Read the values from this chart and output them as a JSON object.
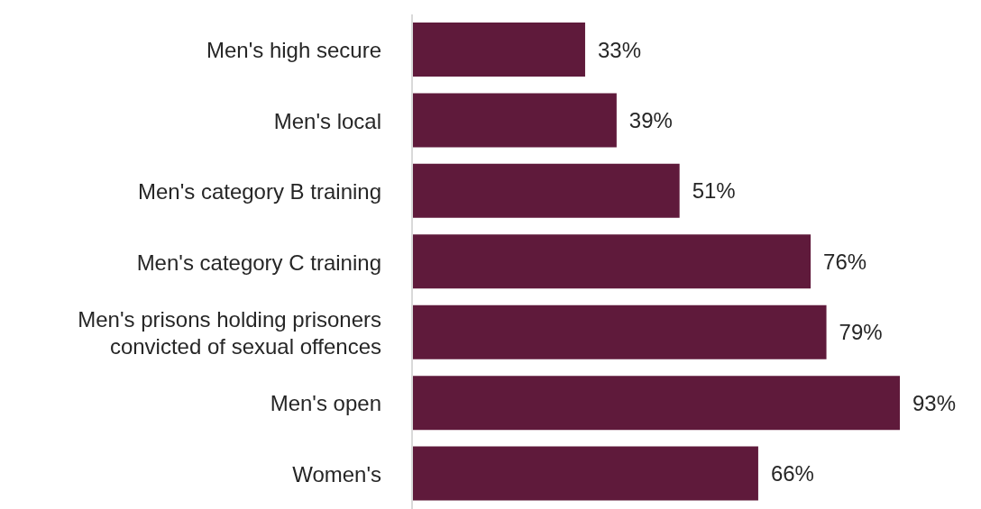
{
  "chart_data": {
    "type": "bar",
    "orientation": "horizontal",
    "categories": [
      "Men's high secure",
      "Men's local",
      "Men's category B training",
      "Men's category C training",
      "Men's prisons holding prisoners convicted of sexual offences",
      "Men's open",
      "Women's"
    ],
    "values": [
      33,
      39,
      51,
      76,
      79,
      93,
      66
    ],
    "value_labels": [
      "33%",
      "39%",
      "51%",
      "76%",
      "79%",
      "93%",
      "66%"
    ],
    "color": "#5f1a3b",
    "grid": false,
    "legend": false
  }
}
